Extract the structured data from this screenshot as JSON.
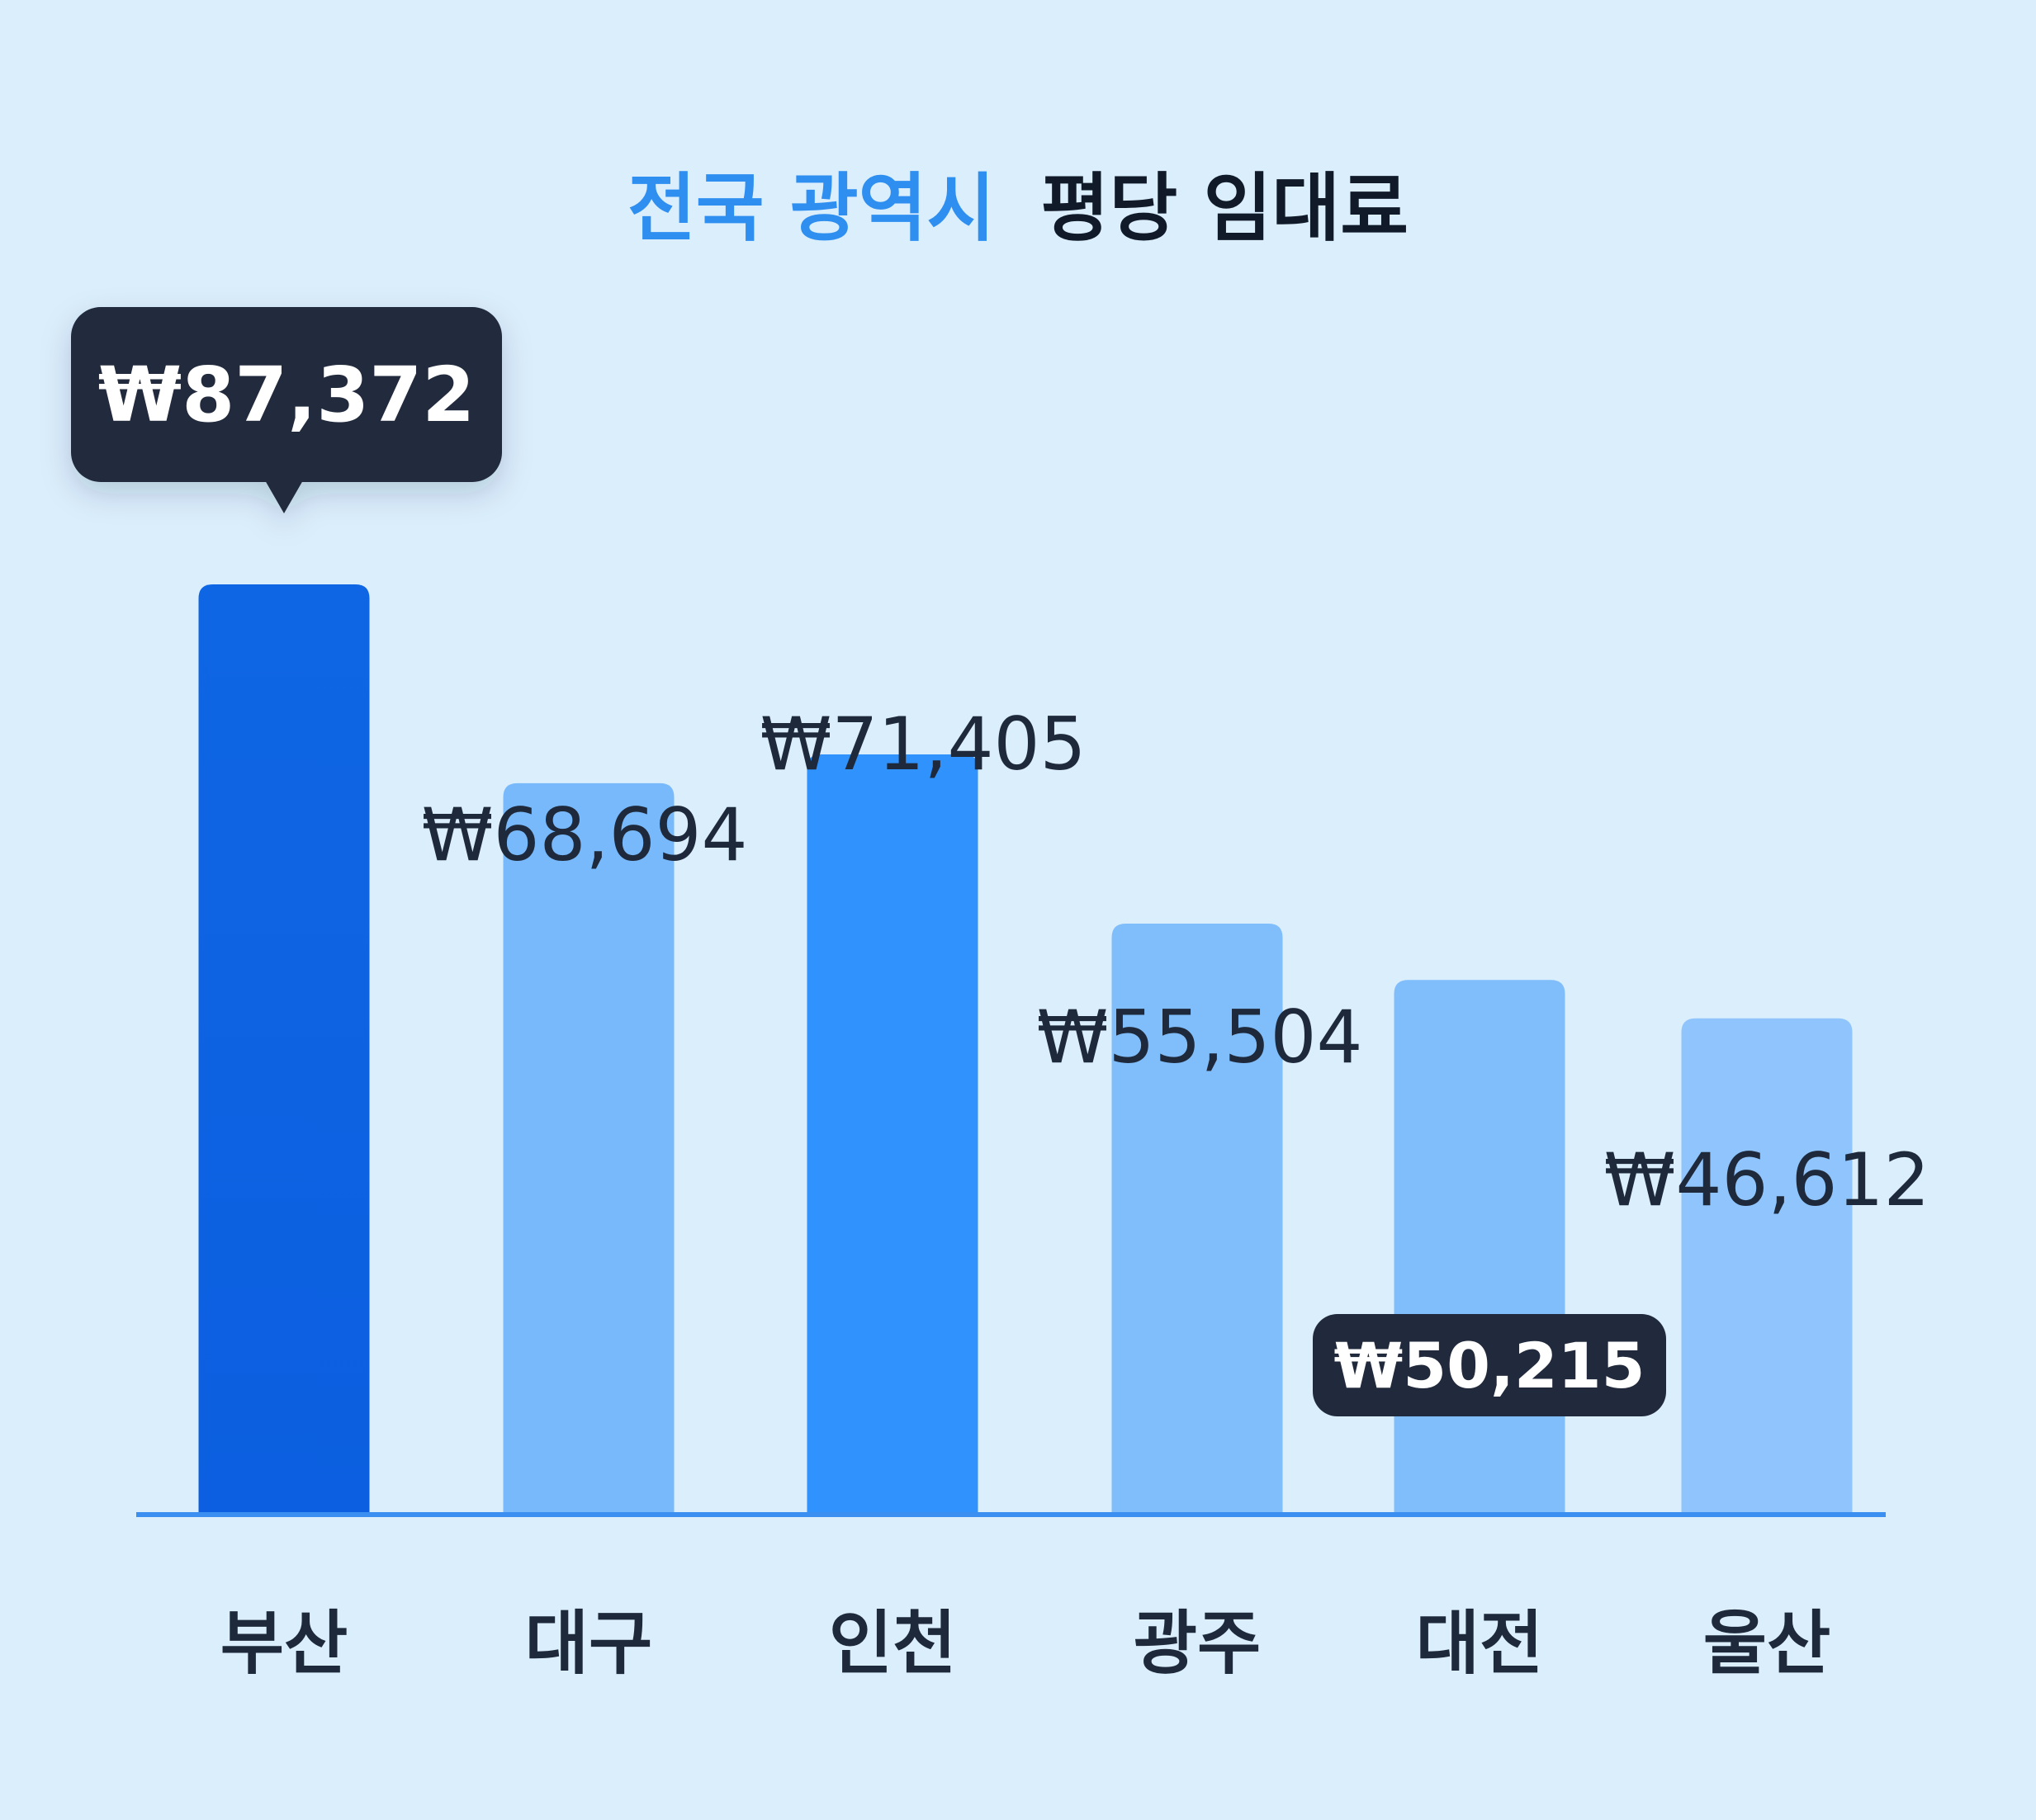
{
  "chart_data": {
    "type": "bar",
    "title_accent": "전국 광역시",
    "title_rest": "평당 임대료",
    "categories": [
      "부산",
      "대구",
      "인천",
      "광주",
      "대전",
      "울산"
    ],
    "values": [
      87372,
      68694,
      71405,
      55504,
      50215,
      46612
    ],
    "value_labels": [
      "₩87,372",
      "₩68,694",
      "₩71,405",
      "₩55,504",
      "₩50,215",
      "₩46,612"
    ],
    "highlighted": [
      "부산",
      "대전"
    ],
    "ylim": [
      0,
      87372
    ],
    "grid": false,
    "legend": "none",
    "colors": {
      "background": "#dbeefc",
      "accent": "#2f8ff0",
      "bars": [
        "#0d63e2",
        "#77b9fb",
        "#3093fd",
        "#80befb",
        "#80bdfb",
        "#8fc5fc"
      ],
      "axis": "#3a8ff0",
      "tooltip": "#212a3c",
      "title_dark": "#111a29",
      "label": "#1e293b"
    }
  }
}
